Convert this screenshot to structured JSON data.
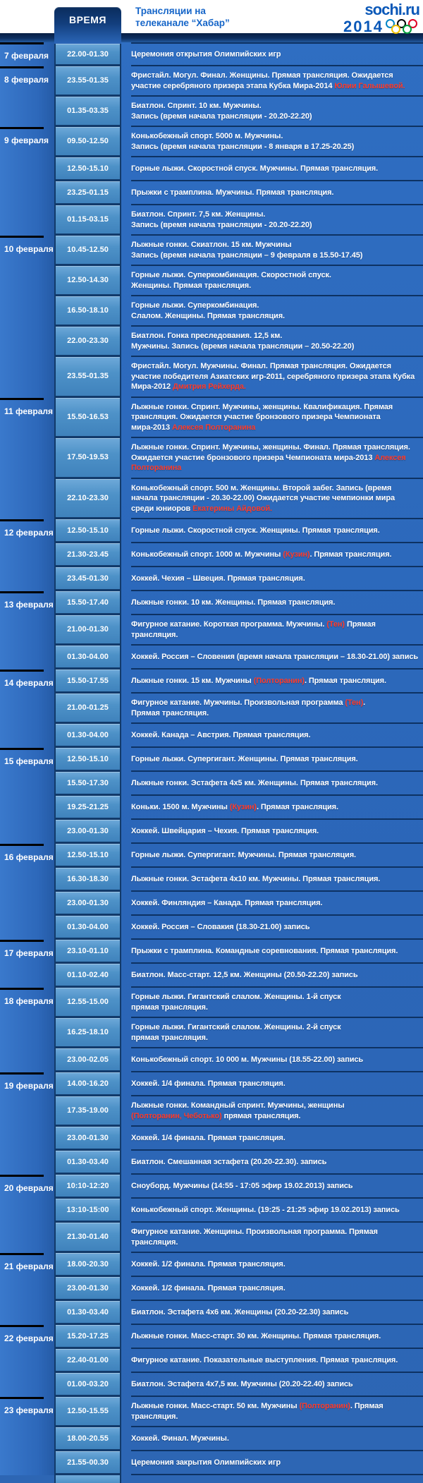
{
  "header": {
    "time_column_label": "ВРЕМЯ",
    "title_line1": "Трансляции на",
    "title_line2": "телеканале “Хабар”",
    "logo_line1": "sochi.ru",
    "logo_line2": "2014",
    "olympic_ring_colors": [
      "#0085C7",
      "#000000",
      "#DF0024",
      "#F4C300",
      "#009F3D"
    ]
  },
  "colors": {
    "accent_red": "#ff3b2b",
    "table_blue": "#2b66b8",
    "time_cell_blue": "#4e92c8",
    "header_title_blue": "#1565c8",
    "logo_blue": "#0a58b8",
    "date_separator_black": "#000000"
  },
  "schedule": [
    {
      "date": "7 февраля",
      "rows": [
        {
          "time": "22.00-01.30",
          "desc": [
            {
              "t": "Церемония открытия Олимпийских игр"
            }
          ]
        }
      ]
    },
    {
      "date": "8 февраля",
      "rows": [
        {
          "time": "23.55-01.35",
          "desc": [
            {
              "t": "Фристайл. Могул. Финал. Женщины. Прямая трансляция. Ожидается участие серебряного призера этапа Кубка Мира-2014 "
            },
            {
              "t": "Юлии Галышевой.",
              "red": true
            }
          ]
        },
        {
          "time": "01.35-03.35",
          "desc": [
            {
              "t": "Биатлон. Спринт. 10 км. Мужчины.\nЗапись (время начала трансляции - 20.20-22.20)"
            }
          ]
        }
      ]
    },
    {
      "date": "9 февраля",
      "rows": [
        {
          "time": "09.50-12.50",
          "desc": [
            {
              "t": "Конькобежный спорт. 5000 м. Мужчины.\nЗапись (время начала трансляции - 8 января в 17.25-20.25)"
            }
          ]
        },
        {
          "time": "12.50-15.10",
          "desc": [
            {
              "t": "Горные лыжи. Скоростной спуск. Мужчины. Прямая трансляция."
            }
          ]
        },
        {
          "time": "23.25-01.15",
          "desc": [
            {
              "t": "Прыжки с трамплина. Мужчины. Прямая трансляция."
            }
          ]
        },
        {
          "time": "01.15-03.15",
          "desc": [
            {
              "t": "Биатлон. Спринт. 7,5 км. Женщины.\nЗапись (время начала трансляции - 20.20-22.20)"
            }
          ]
        }
      ]
    },
    {
      "date": "10 февраля",
      "rows": [
        {
          "time": "10.45-12.50",
          "desc": [
            {
              "t": "Лыжные гонки. Скиатлон. 15 км. Мужчины\nЗапись (время начала трансляции – 9 февраля в 15.50-17.45)"
            }
          ]
        },
        {
          "time": "12.50-14.30",
          "desc": [
            {
              "t": "Горные лыжи. Суперкомбинация. Скоростной спуск.\nЖенщины. Прямая трансляция."
            }
          ]
        },
        {
          "time": "16.50-18.10",
          "desc": [
            {
              "t": "Горные лыжи. Суперкомбинация.\nСлалом. Женщины. Прямая трансляция."
            }
          ]
        },
        {
          "time": "22.00-23.30",
          "desc": [
            {
              "t": "Биатлон. Гонка преследования. 12,5 км.\nМужчины. Запись (время начала трансляции – 20.50-22.20)"
            }
          ]
        },
        {
          "time": "23.55-01.35",
          "desc": [
            {
              "t": "Фристайл. Могул. Мужчины. Финал. Прямая трансляция. Ожидается участие победителя Азиатских игр-2011, серебряного призера этапа Кубка Мира-2012 "
            },
            {
              "t": "Дмитрия Рейхерда.",
              "red": true
            }
          ]
        }
      ]
    },
    {
      "date": "11 февраля",
      "rows": [
        {
          "time": "15.50-16.53",
          "desc": [
            {
              "t": "Лыжные гонки. Спринт. Мужчины, женщины. Квалификация. Прямая трансляция. Ожидается участие бронзового призера Чемпионата мира-2013 "
            },
            {
              "t": "Алексея Полторанина",
              "red": true
            }
          ]
        },
        {
          "time": "17.50-19.53",
          "desc": [
            {
              "t": "Лыжные гонки. Спринт. Мужчины, женщины. Финал. Прямая трансляция. Ожидается участие бронзового призера Чемпионата мира-2013 "
            },
            {
              "t": "Алексея Полторанина",
              "red": true
            }
          ]
        },
        {
          "time": "22.10-23.30",
          "desc": [
            {
              "t": "Конькобежный спорт. 500 м. Женщины. Второй забег. Запись (время начала трансляции - 20.30-22.00) Ожидается участие чемпионки мира среди юниоров "
            },
            {
              "t": "Екатерины Айдовой.",
              "red": true
            }
          ]
        }
      ]
    },
    {
      "date": "12 февраля",
      "rows": [
        {
          "time": "12.50-15.10",
          "desc": [
            {
              "t": "Горные лыжи. Скоростной спуск. Женщины. Прямая трансляция."
            }
          ]
        },
        {
          "time": "21.30-23.45",
          "desc": [
            {
              "t": "Конькобежный спорт. 1000 м. Мужчины "
            },
            {
              "t": "(Кузин)",
              "red": true
            },
            {
              "t": ". Прямая трансляция."
            }
          ]
        },
        {
          "time": "23.45-01.30",
          "desc": [
            {
              "t": "Хоккей. Чехия – Швеция. Прямая трансляция."
            }
          ]
        }
      ]
    },
    {
      "date": "13 февраля",
      "rows": [
        {
          "time": "15.50-17.40",
          "desc": [
            {
              "t": "Лыжные гонки. 10 км. Женщины. Прямая трансляция."
            }
          ]
        },
        {
          "time": "21.00-01.30",
          "desc": [
            {
              "t": "Фигурное катание. Короткая программа. Мужчины. "
            },
            {
              "t": "(Тен)",
              "red": true
            },
            {
              "t": " Прямая трансляция."
            }
          ]
        },
        {
          "time": "01.30-04.00",
          "desc": [
            {
              "t": "Хоккей. Россия – Словения (время начала трансляции – 18.30-21.00) запись"
            }
          ]
        }
      ]
    },
    {
      "date": "14 февраля",
      "rows": [
        {
          "time": "15.50-17.55",
          "desc": [
            {
              "t": "Лыжные гонки. 15 км. Мужчины "
            },
            {
              "t": "(Полторанин)",
              "red": true
            },
            {
              "t": ". Прямая трансляция."
            }
          ]
        },
        {
          "time": "21.00-01.25",
          "desc": [
            {
              "t": "Фигурное катание. Мужчины. Произвольная программа "
            },
            {
              "t": "(Тен)",
              "red": true
            },
            {
              "t": ".\nПрямая трансляция."
            }
          ]
        },
        {
          "time": "01.30-04.00",
          "desc": [
            {
              "t": "Хоккей. Канада – Австрия. Прямая трансляция."
            }
          ]
        }
      ]
    },
    {
      "date": "15 февраля",
      "rows": [
        {
          "time": "12.50-15.10",
          "desc": [
            {
              "t": "Горные лыжи. Супергигант. Женщины. Прямая трансляция."
            }
          ]
        },
        {
          "time": "15.50-17.30",
          "desc": [
            {
              "t": "Лыжные гонки. Эстафета 4x5 км. Женщины. Прямая трансляция."
            }
          ]
        },
        {
          "time": "19.25-21.25",
          "desc": [
            {
              "t": "Коньки. 1500 м. Мужчины "
            },
            {
              "t": "(Кузин)",
              "red": true
            },
            {
              "t": ".  Прямая трансляция."
            }
          ]
        },
        {
          "time": "23.00-01.30",
          "desc": [
            {
              "t": "Хоккей. Швейцария – Чехия. Прямая трансляция."
            }
          ]
        }
      ]
    },
    {
      "date": "16 февраля",
      "rows": [
        {
          "time": "12.50-15.10",
          "desc": [
            {
              "t": "Горные лыжи. Супергигант. Мужчины. Прямая трансляция."
            }
          ]
        },
        {
          "time": "16.30-18.30",
          "desc": [
            {
              "t": "Лыжные гонки. Эстафета 4x10 км. Мужчины. Прямая трансляция."
            }
          ]
        },
        {
          "time": "23.00-01.30",
          "desc": [
            {
              "t": "Хоккей. Финляндия – Канада. Прямая трансляция."
            }
          ]
        },
        {
          "time": "01.30-04.00",
          "desc": [
            {
              "t": "Хоккей. Россия – Словакия (18.30-21.00) запись"
            }
          ]
        }
      ]
    },
    {
      "date": "17 февраля",
      "rows": [
        {
          "time": "23.10-01.10",
          "desc": [
            {
              "t": "Прыжки с трамплина. Командные соревнования. Прямая трансляция."
            }
          ]
        },
        {
          "time": "01.10-02.40",
          "desc": [
            {
              "t": "Биатлон. Масс-старт. 12,5 км. Женщины (20.50-22.20) запись"
            }
          ]
        }
      ]
    },
    {
      "date": "18 февраля",
      "rows": [
        {
          "time": "12.55-15.00",
          "desc": [
            {
              "t": "Горные лыжи. Гигантский слалом. Женщины. 1-й спуск\nпрямая трансляция."
            }
          ]
        },
        {
          "time": "16.25-18.10",
          "desc": [
            {
              "t": "Горные лыжи. Гигантский слалом. Женщины. 2-й спуск\nпрямая трансляция."
            }
          ]
        },
        {
          "time": "23.00-02.05",
          "desc": [
            {
              "t": "Конькобежный спорт. 10 000 м. Мужчины (18.55-22.00) запись"
            }
          ]
        }
      ]
    },
    {
      "date": "19 февраля",
      "rows": [
        {
          "time": "14.00-16.20",
          "desc": [
            {
              "t": "Хоккей. 1/4 финала. Прямая трансляция."
            }
          ]
        },
        {
          "time": "17.35-19.00",
          "desc": [
            {
              "t": "Лыжные гонки. Командный спринт. Мужчины, женщины\n"
            },
            {
              "t": "(Полторанин, Чеботько)",
              "red": true
            },
            {
              "t": " прямая трансляция."
            }
          ]
        },
        {
          "time": "23.00-01.30",
          "desc": [
            {
              "t": "Хоккей. 1/4 финала. Прямая трансляция."
            }
          ]
        },
        {
          "time": "01.30-03.40",
          "desc": [
            {
              "t": "Биатлон. Смешанная эстафета (20.20-22.30). запись"
            }
          ]
        }
      ]
    },
    {
      "date": "20 февраля",
      "rows": [
        {
          "time": "10:10-12:20",
          "desc": [
            {
              "t": "Сноуборд. Мужчины (14:55 - 17:05 эфир 19.02.2013) запись"
            }
          ]
        },
        {
          "time": "13:10-15:00",
          "desc": [
            {
              "t": "Конькобежный спорт. Женщины. (19:25 - 21:25 эфир 19.02.2013) запись"
            }
          ]
        },
        {
          "time": "21.30-01.40",
          "desc": [
            {
              "t": "Фигурное катание. Женщины. Произвольная программа. Прямая трансляция."
            }
          ]
        }
      ]
    },
    {
      "date": "21 февраля",
      "rows": [
        {
          "time": "18.00-20.30",
          "desc": [
            {
              "t": "Хоккей. 1/2 финала. Прямая трансляция."
            }
          ]
        },
        {
          "time": "23.00-01.30",
          "desc": [
            {
              "t": "Хоккей. 1/2 финала. Прямая трансляция."
            }
          ]
        },
        {
          "time": "01.30-03.40",
          "desc": [
            {
              "t": "Биатлон. Эстафета 4x6 км. Женщины (20.20-22.30) запись"
            }
          ]
        }
      ]
    },
    {
      "date": "22 февраля",
      "rows": [
        {
          "time": "15.20-17.25",
          "desc": [
            {
              "t": "Лыжные гонки. Масс-старт. 30 км. Женщины. Прямая трансляция."
            }
          ]
        },
        {
          "time": "22.40-01.00",
          "desc": [
            {
              "t": "Фигурное катание. Показательные выступления. Прямая трансляция."
            }
          ]
        },
        {
          "time": "01.00-03.20",
          "desc": [
            {
              "t": "Биатлон. Эстафета 4x7,5 км. Мужчины (20.20-22.40) запись"
            }
          ]
        }
      ]
    },
    {
      "date": "23 февраля",
      "rows": [
        {
          "time": "12.50-15.55",
          "desc": [
            {
              "t": "Лыжные гонки. Масс-старт. 50 км. Мужчины "
            },
            {
              "t": "(Полторанин)",
              "red": true
            },
            {
              "t": ". Прямая трансляция."
            }
          ]
        },
        {
          "time": "18.00-20.55",
          "desc": [
            {
              "t": "Хоккей. Финал. Мужчины."
            }
          ]
        },
        {
          "time": "21.55-00.30",
          "desc": [
            {
              "t": "Церемония закрытия Олимпийских игр"
            }
          ]
        }
      ]
    }
  ]
}
